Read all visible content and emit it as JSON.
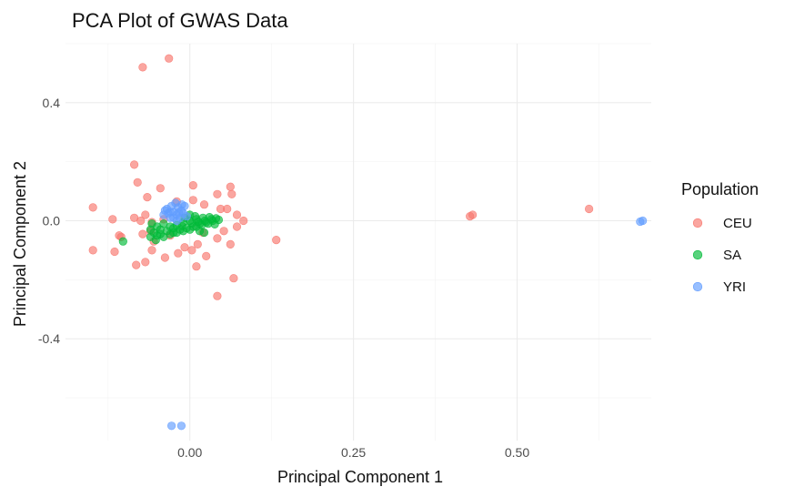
{
  "chart_data": {
    "type": "scatter",
    "title": "PCA Plot of GWAS Data",
    "xlabel": "Principal Component 1",
    "ylabel": "Principal Component 2",
    "xlim": [
      -0.19,
      0.705
    ],
    "ylim": [
      -0.745,
      0.6
    ],
    "x_ticks": [
      0.0,
      0.25,
      0.5
    ],
    "x_tick_labels": [
      "0.00",
      "0.25",
      "0.50"
    ],
    "y_ticks": [
      -0.4,
      0.0,
      0.4
    ],
    "y_tick_labels": [
      "-0.4",
      "0.0",
      "0.4"
    ],
    "grid": true,
    "legend": {
      "title": "Population",
      "position": "right"
    },
    "series": [
      {
        "name": "CEU",
        "color": "#F8766D",
        "points": [
          [
            -0.072,
            0.52
          ],
          [
            -0.032,
            0.55
          ],
          [
            -0.085,
            0.19
          ],
          [
            -0.08,
            0.13
          ],
          [
            -0.065,
            0.08
          ],
          [
            -0.045,
            0.11
          ],
          [
            -0.02,
            0.065
          ],
          [
            0.005,
            0.12
          ],
          [
            0.005,
            0.07
          ],
          [
            0.022,
            0.055
          ],
          [
            0.042,
            0.09
          ],
          [
            0.062,
            0.115
          ],
          [
            0.064,
            0.09
          ],
          [
            0.047,
            0.04
          ],
          [
            0.057,
            0.04
          ],
          [
            0.072,
            0.02
          ],
          [
            0.082,
            0.0
          ],
          [
            0.072,
            -0.02
          ],
          [
            -0.148,
            0.045
          ],
          [
            -0.118,
            0.005
          ],
          [
            -0.108,
            -0.05
          ],
          [
            -0.105,
            -0.055
          ],
          [
            -0.148,
            -0.1
          ],
          [
            -0.115,
            -0.105
          ],
          [
            -0.082,
            -0.15
          ],
          [
            -0.068,
            -0.14
          ],
          [
            -0.058,
            -0.1
          ],
          [
            -0.038,
            -0.125
          ],
          [
            -0.018,
            -0.11
          ],
          [
            -0.008,
            -0.09
          ],
          [
            0.012,
            -0.08
          ],
          [
            0.01,
            -0.155
          ],
          [
            0.025,
            -0.12
          ],
          [
            0.042,
            -0.06
          ],
          [
            0.062,
            -0.08
          ],
          [
            0.067,
            -0.195
          ],
          [
            0.042,
            -0.255
          ],
          [
            0.052,
            -0.035
          ],
          [
            0.132,
            -0.065
          ],
          [
            -0.085,
            0.01
          ],
          [
            -0.075,
            0.0
          ],
          [
            -0.068,
            0.02
          ],
          [
            -0.058,
            -0.005
          ],
          [
            -0.072,
            -0.045
          ],
          [
            -0.055,
            -0.07
          ],
          [
            -0.04,
            0.005
          ],
          [
            -0.06,
            -0.035
          ],
          [
            0.003,
            -0.1
          ],
          [
            0.02,
            -0.04
          ],
          [
            -0.03,
            -0.05
          ],
          [
            0.428,
            0.015
          ],
          [
            0.432,
            0.02
          ],
          [
            0.61,
            0.04
          ]
        ]
      },
      {
        "name": "SA",
        "color": "#00BA38",
        "points": [
          [
            -0.102,
            -0.07
          ],
          [
            -0.06,
            -0.03
          ],
          [
            -0.055,
            -0.04
          ],
          [
            -0.05,
            -0.02
          ],
          [
            -0.045,
            -0.045
          ],
          [
            -0.04,
            -0.01
          ],
          [
            -0.035,
            -0.035
          ],
          [
            -0.03,
            -0.02
          ],
          [
            -0.025,
            -0.04
          ],
          [
            -0.02,
            -0.015
          ],
          [
            -0.015,
            -0.03
          ],
          [
            -0.01,
            -0.005
          ],
          [
            -0.005,
            -0.025
          ],
          [
            0.0,
            0.0
          ],
          [
            0.005,
            -0.02
          ],
          [
            0.01,
            0.005
          ],
          [
            0.015,
            -0.01
          ],
          [
            0.02,
            0.01
          ],
          [
            0.025,
            -0.005
          ],
          [
            0.03,
            0.012
          ],
          [
            0.035,
            0.0
          ],
          [
            0.04,
            0.008
          ],
          [
            0.044,
            0.003
          ],
          [
            -0.05,
            -0.05
          ],
          [
            -0.04,
            -0.055
          ],
          [
            -0.03,
            -0.045
          ],
          [
            -0.02,
            -0.04
          ],
          [
            -0.01,
            -0.035
          ],
          [
            0.0,
            -0.03
          ],
          [
            0.01,
            -0.02
          ],
          [
            0.018,
            -0.015
          ],
          [
            0.028,
            -0.01
          ],
          [
            -0.06,
            -0.055
          ],
          [
            -0.045,
            -0.03
          ],
          [
            -0.025,
            -0.025
          ],
          [
            -0.012,
            -0.018
          ],
          [
            0.003,
            -0.008
          ],
          [
            0.013,
            -0.003
          ],
          [
            0.023,
            0.0
          ],
          [
            0.033,
            0.005
          ],
          [
            -0.058,
            -0.01
          ],
          [
            -0.052,
            -0.065
          ],
          [
            0.015,
            -0.035
          ],
          [
            0.022,
            -0.04
          ],
          [
            0.008,
            0.015
          ],
          [
            0.0,
            0.02
          ],
          [
            -0.008,
            0.01
          ],
          [
            0.038,
            -0.012
          ]
        ]
      },
      {
        "name": "YRI",
        "color": "#619CFF",
        "points": [
          [
            -0.04,
            0.02
          ],
          [
            -0.035,
            0.04
          ],
          [
            -0.03,
            0.01
          ],
          [
            -0.028,
            0.05
          ],
          [
            -0.025,
            0.03
          ],
          [
            -0.022,
            0.06
          ],
          [
            -0.02,
            0.02
          ],
          [
            -0.018,
            0.045
          ],
          [
            -0.015,
            0.01
          ],
          [
            -0.013,
            0.035
          ],
          [
            -0.01,
            0.025
          ],
          [
            -0.008,
            0.05
          ],
          [
            -0.005,
            0.015
          ],
          [
            -0.03,
            0.03
          ],
          [
            -0.038,
            0.035
          ],
          [
            -0.02,
            0.0
          ],
          [
            -0.025,
            0.01
          ],
          [
            -0.012,
            0.055
          ],
          [
            -0.033,
            0.025
          ],
          [
            -0.017,
            0.028
          ],
          [
            0.688,
            -0.003
          ],
          [
            0.692,
            0.0
          ],
          [
            -0.028,
            -0.695
          ],
          [
            -0.013,
            -0.695
          ]
        ]
      }
    ]
  }
}
